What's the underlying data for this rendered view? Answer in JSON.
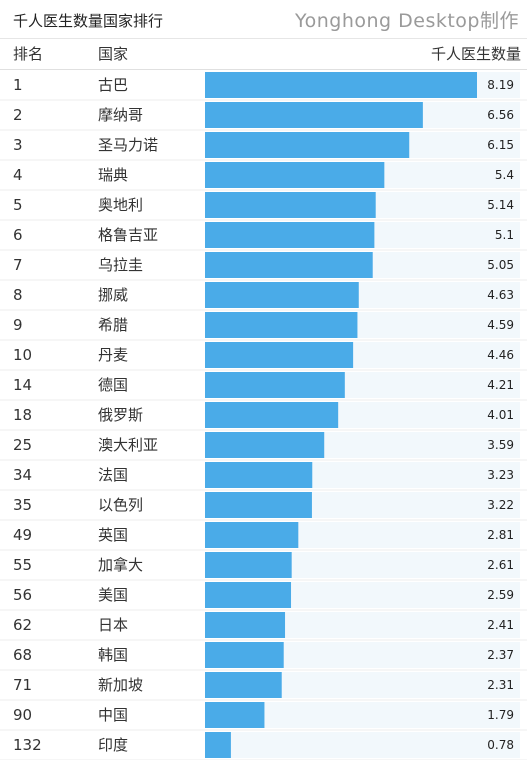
{
  "title": "千人医生数量国家排行",
  "watermark": "Yonghong Desktop制作",
  "columns": {
    "rank": "排名",
    "country": "国家",
    "value": "千人医生数量"
  },
  "colors": {
    "bar": "#4aabe8",
    "track": "#f2f8fc",
    "row_divider": "#ececec"
  },
  "chart_data": {
    "type": "bar",
    "orientation": "horizontal",
    "ranks": [
      1,
      2,
      3,
      4,
      5,
      6,
      7,
      8,
      9,
      10,
      14,
      18,
      25,
      34,
      35,
      49,
      55,
      56,
      62,
      68,
      71,
      90,
      132
    ],
    "categories": [
      "古巴",
      "摩纳哥",
      "圣马力诺",
      "瑞典",
      "奥地利",
      "格鲁吉亚",
      "乌拉圭",
      "挪威",
      "希腊",
      "丹麦",
      "德国",
      "俄罗斯",
      "澳大利亚",
      "法国",
      "以色列",
      "英国",
      "加拿大",
      "美国",
      "日本",
      "韩国",
      "新加坡",
      "中国",
      "印度"
    ],
    "values": [
      8.19,
      6.56,
      6.15,
      5.4,
      5.14,
      5.1,
      5.05,
      4.63,
      4.59,
      4.46,
      4.21,
      4.01,
      3.59,
      3.23,
      3.22,
      2.81,
      2.61,
      2.59,
      2.41,
      2.37,
      2.31,
      1.79,
      0.78
    ],
    "value_labels": [
      "8.19",
      "6.56",
      "6.15",
      "5.4",
      "5.14",
      "5.1",
      "5.05",
      "4.63",
      "4.59",
      "4.46",
      "4.21",
      "4.01",
      "3.59",
      "3.23",
      "3.22",
      "2.81",
      "2.61",
      "2.59",
      "2.41",
      "2.37",
      "2.31",
      "1.79",
      "0.78"
    ],
    "xlim": [
      0,
      8.19
    ],
    "grid": false,
    "legend": "none"
  }
}
